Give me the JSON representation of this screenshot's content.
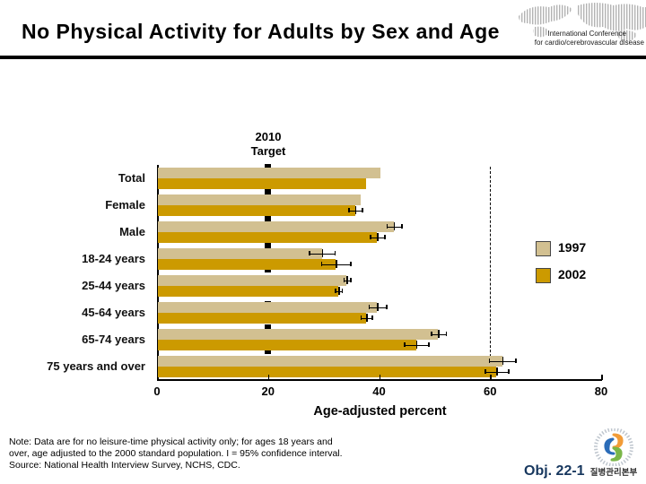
{
  "slide": {
    "title": "No Physical Activity for Adults by Sex and Age",
    "conference": {
      "line1": "International Conference",
      "line2": "for cardio/cerebrovascular disease"
    },
    "footer": {
      "note_lines": [
        "Note:  Data are for no leisure-time physical activity only; for ages 18 years and",
        "over, age adjusted to the 2000 standard population.  I = 95% confidence interval.",
        "Source: National Health Interview Survey, NCHS, CDC."
      ],
      "objective": "Obj. 22-1",
      "kcdc_label": "질병관리본부"
    }
  },
  "chart_data": {
    "type": "bar",
    "orientation": "horizontal",
    "title": "No Physical Activity for Adults by Sex and Age",
    "xlabel": "Age-adjusted percent",
    "xlim": [
      0,
      80
    ],
    "xticks": [
      0,
      20,
      40,
      60,
      80
    ],
    "grid": "off",
    "legend_position": "right",
    "categories": [
      "Total",
      "Female",
      "Male",
      "18-24 years",
      "25-44 years",
      "45-64 years",
      "65-74 years",
      "75 years and over"
    ],
    "series": [
      {
        "name": "1997",
        "color": "#D2C091",
        "values": [
          40,
          36.5,
          42.5,
          29.5,
          34,
          39.5,
          50.5,
          62
        ],
        "errors": [
          0,
          0,
          1.3,
          2.3,
          0.6,
          1.6,
          1.3,
          2.4
        ]
      },
      {
        "name": "2002",
        "color": "#CC9A00",
        "values": [
          37.5,
          35.5,
          39.5,
          32,
          32.5,
          37.5,
          46.5,
          61
        ],
        "errors": [
          0,
          1.2,
          1.3,
          2.6,
          0.6,
          1.0,
          2.2,
          2.1
        ]
      }
    ],
    "target": {
      "value": 20,
      "label_line1": "2010",
      "label_line2": "Target"
    },
    "reference_line": {
      "value": 60,
      "style": "dashed"
    },
    "error_note": "95% confidence interval"
  },
  "colors": {
    "bar_1997": "#D2C091",
    "bar_2002": "#CC9A00",
    "target_line": "#000000",
    "objective_text": "#17375E",
    "kcdc_blue": "#2B6CB8",
    "kcdc_green": "#7AB648",
    "kcdc_orange": "#F29C38"
  }
}
